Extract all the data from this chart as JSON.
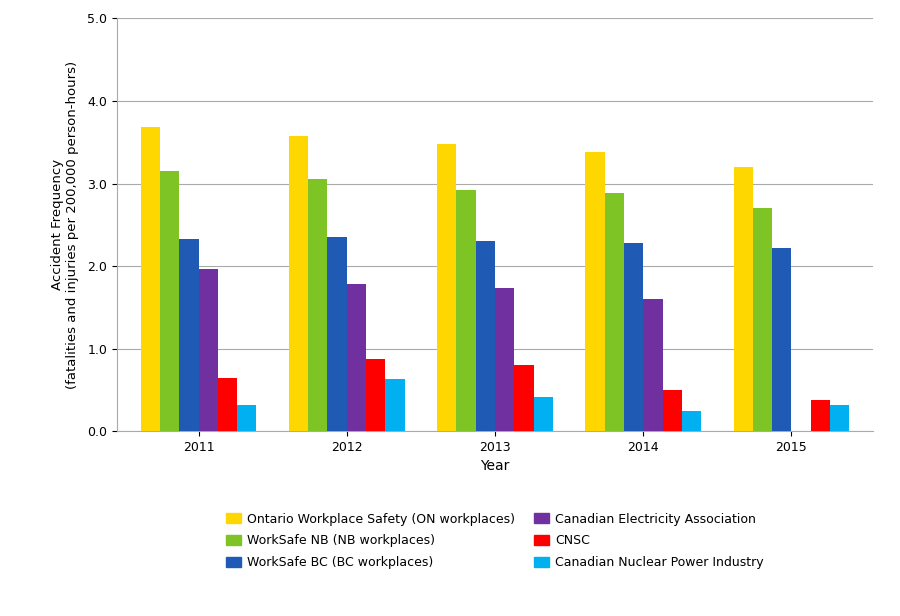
{
  "years": [
    "2011",
    "2012",
    "2013",
    "2014",
    "2015"
  ],
  "series": [
    {
      "label": "Ontario Workplace Safety (ON workplaces)",
      "color": "#FFD700",
      "values": [
        3.68,
        3.58,
        3.48,
        3.38,
        3.2
      ]
    },
    {
      "label": "WorkSafe NB (NB workplaces)",
      "color": "#7DC424",
      "values": [
        3.15,
        3.06,
        2.92,
        2.88,
        2.7
      ]
    },
    {
      "label": "WorkSafe BC (BC workplaces)",
      "color": "#1F5BB5",
      "values": [
        2.33,
        2.35,
        2.3,
        2.28,
        2.22
      ]
    },
    {
      "label": "Canadian Electricity Association",
      "color": "#7030A0",
      "values": [
        1.97,
        1.78,
        1.73,
        1.6,
        0.0
      ]
    },
    {
      "label": "CNSC",
      "color": "#FF0000",
      "values": [
        0.65,
        0.87,
        0.8,
        0.5,
        0.38
      ]
    },
    {
      "label": "Canadian Nuclear Power Industry",
      "color": "#00B0F0",
      "values": [
        0.32,
        0.63,
        0.42,
        0.24,
        0.32
      ]
    }
  ],
  "legend_order": [
    0,
    1,
    2,
    3,
    4,
    5
  ],
  "ylabel": "Accident Frequency\n(fatalities and injuries per 200,000 person-hours)",
  "xlabel": "Year",
  "ylim": [
    0.0,
    5.0
  ],
  "yticks": [
    0.0,
    1.0,
    2.0,
    3.0,
    4.0,
    5.0
  ],
  "background_color": "#FFFFFF",
  "grid_color": "#AAAAAA",
  "bar_width": 0.13,
  "axis_fontsize": 10,
  "tick_fontsize": 9,
  "legend_fontsize": 9
}
